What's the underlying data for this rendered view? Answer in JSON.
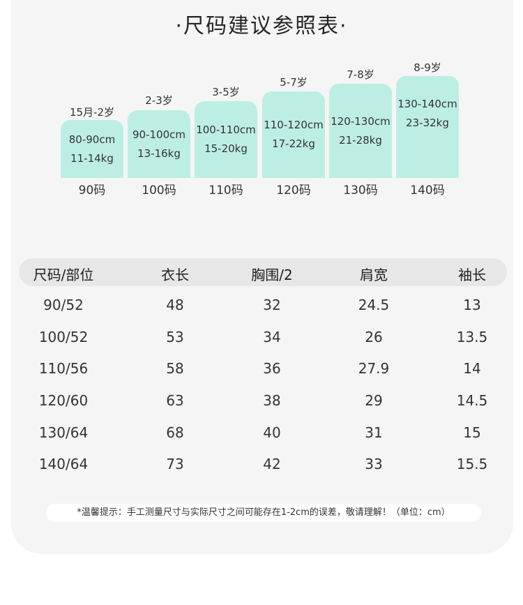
{
  "title": "·尺码建议参照表·",
  "sizes": [
    {
      "age": "15月-2岁",
      "height": "80-90cm",
      "weight": "11-14kg",
      "code": "90码"
    },
    {
      "age": "2-3岁",
      "height": "90-100cm",
      "weight": "13-16kg",
      "code": "100码"
    },
    {
      "age": "3-5岁",
      "height": "100-110cm",
      "weight": "15-20kg",
      "code": "110码"
    },
    {
      "age": "5-7岁",
      "height": "110-120cm",
      "weight": "17-22kg",
      "code": "120码"
    },
    {
      "age": "7-8岁",
      "height": "120-130cm",
      "weight": "21-28kg",
      "code": "130码"
    },
    {
      "age": "8-9岁",
      "height": "130-140cm",
      "weight": "23-32kg",
      "code": "140码"
    }
  ],
  "table": {
    "headers": [
      "尺码/部位",
      "衣长",
      "胸围/2",
      "肩宽",
      "袖长"
    ],
    "rows": [
      [
        "90/52",
        "48",
        "32",
        "24.5",
        "13"
      ],
      [
        "100/52",
        "53",
        "34",
        "26",
        "13.5"
      ],
      [
        "110/56",
        "58",
        "36",
        "27.9",
        "14"
      ],
      [
        "120/60",
        "63",
        "38",
        "29",
        "14.5"
      ],
      [
        "130/64",
        "68",
        "40",
        "31",
        "15"
      ],
      [
        "140/64",
        "73",
        "42",
        "33",
        "15.5"
      ]
    ]
  },
  "notice": "*温馨提示：手工测量尺寸与实际尺寸之间可能存在1-2cm的误差，敬请理解！（单位：cm）",
  "colors": {
    "bar": "#bdeee4",
    "card": "#f5f5f5",
    "header": "#e7e7e7"
  }
}
